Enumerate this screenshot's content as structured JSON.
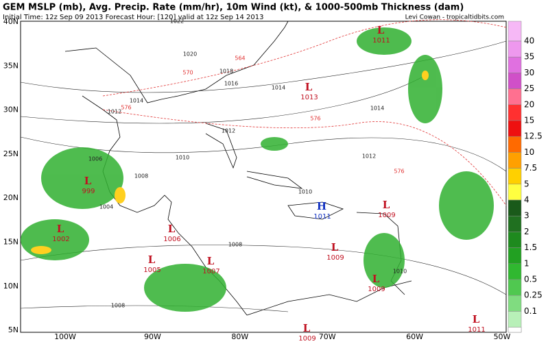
{
  "header": {
    "title": "GEM MSLP (mb), Avg. Precip. Rate (mm/hr), 10m Wind (kt), & 1000-500mb Thickness (dam)",
    "subtitle": "Initial Time: 12z Sep 09 2013 Forecast Hour: [120] valid at 12z Sep 14 2013",
    "credit": "Levi Cowan - tropicaltidbits.com"
  },
  "map": {
    "lat_labels": [
      "40N",
      "35N",
      "30N",
      "25N",
      "20N",
      "15N",
      "10N",
      "5N"
    ],
    "lon_labels": [
      "100W",
      "90W",
      "80W",
      "70W",
      "60W",
      "50W"
    ],
    "pressure_centers": [
      {
        "symbol": "L",
        "value": "1011"
      },
      {
        "symbol": "L",
        "value": "1013"
      },
      {
        "symbol": "L",
        "value": "999"
      },
      {
        "symbol": "L",
        "value": "1002"
      },
      {
        "symbol": "L",
        "value": "1006"
      },
      {
        "symbol": "L",
        "value": "1005"
      },
      {
        "symbol": "L",
        "value": "1007"
      },
      {
        "symbol": "H",
        "value": "1011"
      },
      {
        "symbol": "L",
        "value": "1009"
      },
      {
        "symbol": "L",
        "value": "1009"
      },
      {
        "symbol": "L",
        "value": "1009"
      },
      {
        "symbol": "L",
        "value": "1009"
      },
      {
        "symbol": "L",
        "value": "1011"
      }
    ],
    "isobar_labels": [
      "1022",
      "1020",
      "1018",
      "1016",
      "1014",
      "1014",
      "1012",
      "1012",
      "1014",
      "1012",
      "1010",
      "1006",
      "1008",
      "1004",
      "1010",
      "1008",
      "1010",
      "1008"
    ],
    "thickness_labels": [
      "564",
      "570",
      "576",
      "576",
      "576"
    ]
  },
  "colorbar": {
    "labels": [
      "40",
      "35",
      "30",
      "25",
      "20",
      "15",
      "12.5",
      "10",
      "7.5",
      "5",
      "4",
      "3",
      "2",
      "1.5",
      "1",
      "0.5",
      "0.25",
      "0.1"
    ],
    "colors": [
      "#f6b8f6",
      "#ee98ee",
      "#e070e0",
      "#d050c8",
      "#ff7090",
      "#ff3030",
      "#ee1010",
      "#ff6a00",
      "#ffa000",
      "#ffd000",
      "#ffff40",
      "#1a5a1a",
      "#207020",
      "#1e8a1e",
      "#22a022",
      "#30b830",
      "#50c850",
      "#80dc80",
      "#b8f0b8",
      "#ffffff"
    ]
  }
}
